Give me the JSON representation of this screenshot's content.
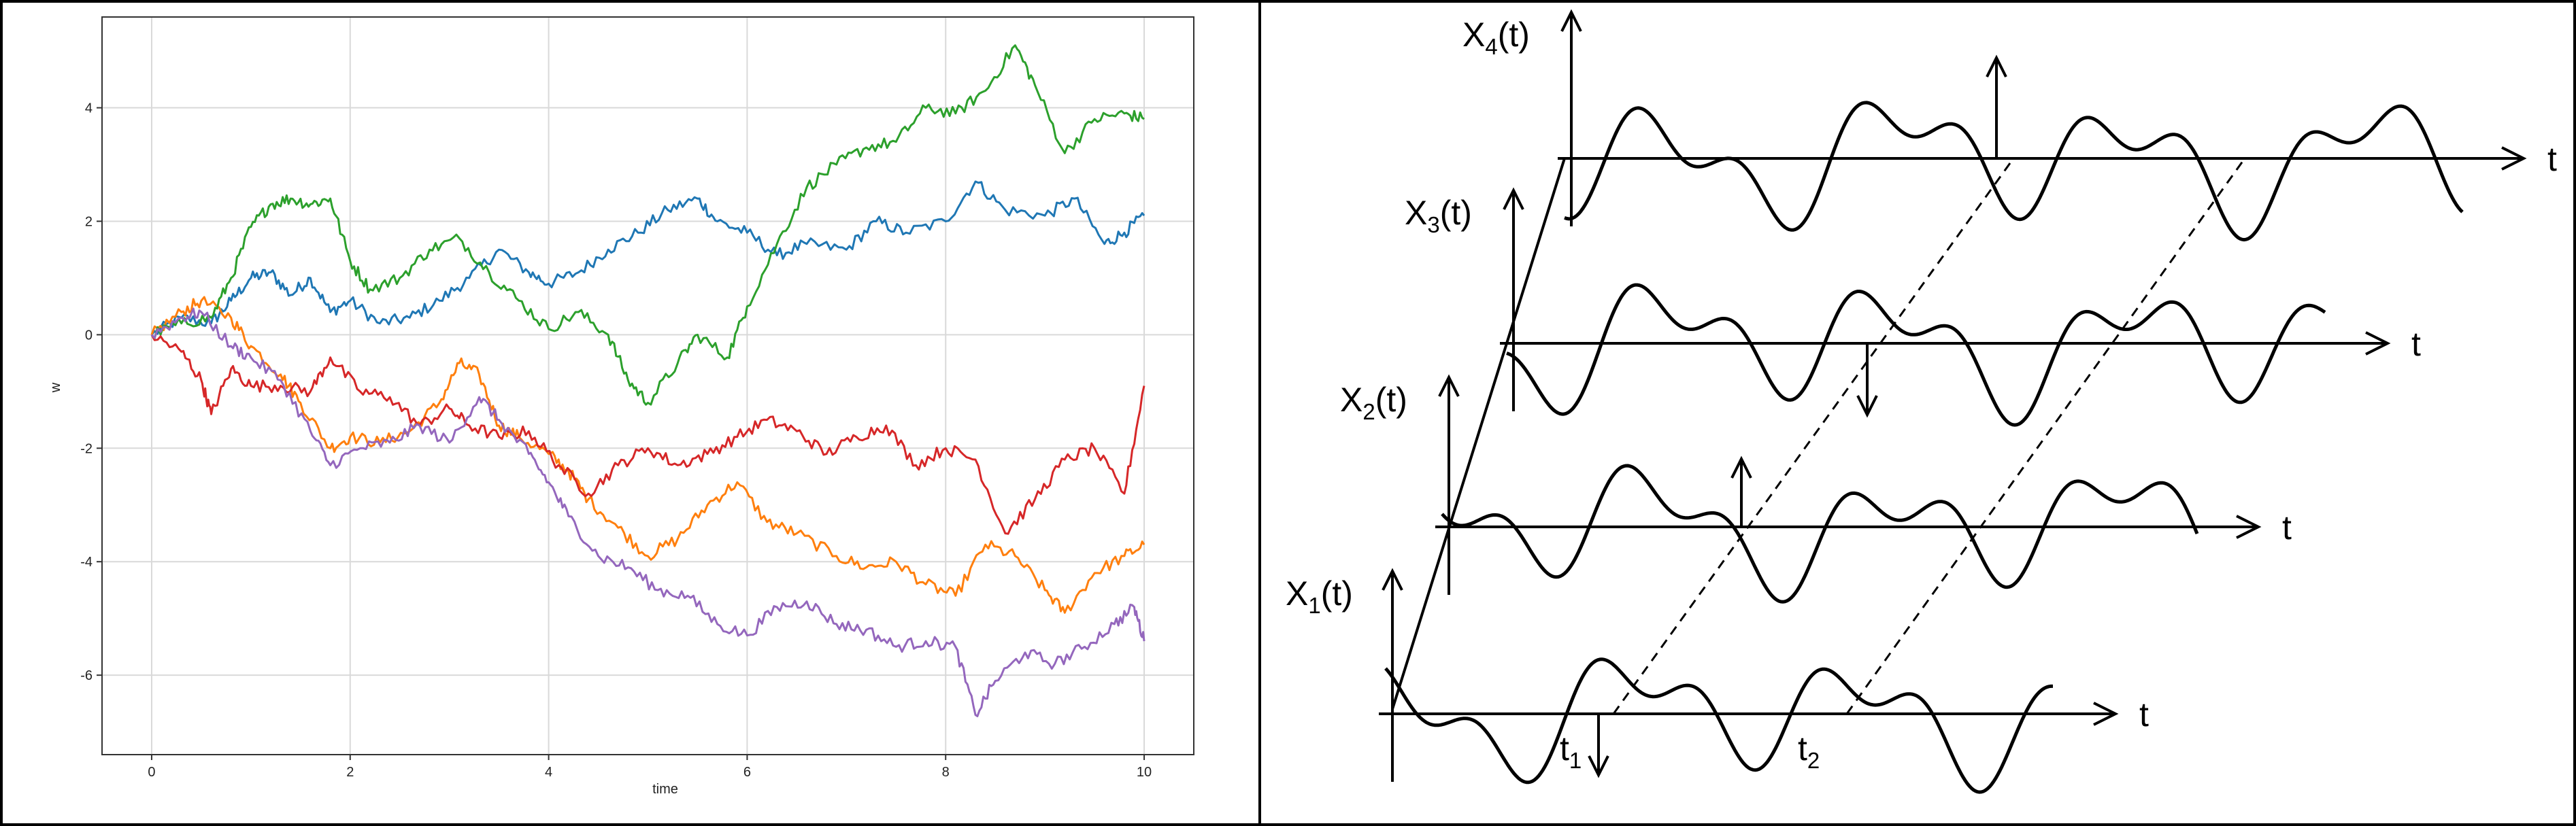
{
  "chart_data": {
    "type": "line",
    "xlabel": "time",
    "ylabel": "w",
    "xlim": [
      -0.5,
      10.5
    ],
    "ylim": [
      -7.4,
      5.6
    ],
    "xticks": [
      "0",
      "2",
      "4",
      "6",
      "8",
      "10"
    ],
    "yticks": [
      "-6",
      "-4",
      "-2",
      "0",
      "2",
      "4"
    ],
    "grid": true,
    "series": [
      {
        "color": "#1f77b4",
        "points": [
          [
            0,
            0
          ],
          [
            0.3,
            0.3
          ],
          [
            0.6,
            0.2
          ],
          [
            0.8,
            0.6
          ],
          [
            1.0,
            1.0
          ],
          [
            1.2,
            1.1
          ],
          [
            1.4,
            0.7
          ],
          [
            1.6,
            1.0
          ],
          [
            1.8,
            0.4
          ],
          [
            2.0,
            0.6
          ],
          [
            2.3,
            0.2
          ],
          [
            2.6,
            0.3
          ],
          [
            2.9,
            0.6
          ],
          [
            3.2,
            1.0
          ],
          [
            3.5,
            1.5
          ],
          [
            3.8,
            1.1
          ],
          [
            4.0,
            0.9
          ],
          [
            4.3,
            1.1
          ],
          [
            4.6,
            1.5
          ],
          [
            4.9,
            1.8
          ],
          [
            5.2,
            2.2
          ],
          [
            5.5,
            2.4
          ],
          [
            5.7,
            2.0
          ],
          [
            6.0,
            1.8
          ],
          [
            6.3,
            1.4
          ],
          [
            6.6,
            1.6
          ],
          [
            7.0,
            1.5
          ],
          [
            7.3,
            2.0
          ],
          [
            7.6,
            1.8
          ],
          [
            8.0,
            2.0
          ],
          [
            8.3,
            2.7
          ],
          [
            8.6,
            2.2
          ],
          [
            9.0,
            2.1
          ],
          [
            9.3,
            2.4
          ],
          [
            9.6,
            1.6
          ],
          [
            9.8,
            1.8
          ],
          [
            10.0,
            2.1
          ]
        ]
      },
      {
        "color": "#ff7f0e",
        "points": [
          [
            0,
            0
          ],
          [
            0.3,
            0.4
          ],
          [
            0.5,
            0.6
          ],
          [
            0.8,
            0.3
          ],
          [
            1.0,
            -0.2
          ],
          [
            1.3,
            -0.7
          ],
          [
            1.5,
            -1.2
          ],
          [
            1.8,
            -2.0
          ],
          [
            2.0,
            -1.8
          ],
          [
            2.3,
            -1.9
          ],
          [
            2.6,
            -1.7
          ],
          [
            2.9,
            -1.2
          ],
          [
            3.1,
            -0.5
          ],
          [
            3.3,
            -0.7
          ],
          [
            3.5,
            -1.6
          ],
          [
            3.7,
            -1.8
          ],
          [
            4.0,
            -2.1
          ],
          [
            4.2,
            -2.4
          ],
          [
            4.4,
            -2.9
          ],
          [
            4.7,
            -3.4
          ],
          [
            5.0,
            -3.9
          ],
          [
            5.3,
            -3.6
          ],
          [
            5.6,
            -3.0
          ],
          [
            5.9,
            -2.6
          ],
          [
            6.2,
            -3.3
          ],
          [
            6.5,
            -3.5
          ],
          [
            6.9,
            -3.9
          ],
          [
            7.2,
            -4.1
          ],
          [
            7.5,
            -4.0
          ],
          [
            7.8,
            -4.4
          ],
          [
            8.1,
            -4.6
          ],
          [
            8.4,
            -3.7
          ],
          [
            8.7,
            -3.9
          ],
          [
            9.0,
            -4.5
          ],
          [
            9.2,
            -4.9
          ],
          [
            9.5,
            -4.2
          ],
          [
            9.8,
            -3.9
          ],
          [
            10.0,
            -3.7
          ]
        ]
      },
      {
        "color": "#2ca02c",
        "points": [
          [
            0,
            0
          ],
          [
            0.3,
            0.2
          ],
          [
            0.6,
            0.3
          ],
          [
            0.8,
            1.0
          ],
          [
            1.0,
            1.9
          ],
          [
            1.2,
            2.3
          ],
          [
            1.4,
            2.4
          ],
          [
            1.6,
            2.3
          ],
          [
            1.8,
            2.4
          ],
          [
            2.0,
            1.3
          ],
          [
            2.2,
            0.8
          ],
          [
            2.5,
            1.0
          ],
          [
            2.8,
            1.5
          ],
          [
            3.1,
            1.7
          ],
          [
            3.4,
            1.1
          ],
          [
            3.7,
            0.6
          ],
          [
            4.0,
            0.1
          ],
          [
            4.3,
            0.4
          ],
          [
            4.6,
            0.0
          ],
          [
            4.8,
            -0.8
          ],
          [
            5.0,
            -1.2
          ],
          [
            5.3,
            -0.5
          ],
          [
            5.5,
            0.0
          ],
          [
            5.8,
            -0.4
          ],
          [
            6.0,
            0.5
          ],
          [
            6.3,
            1.6
          ],
          [
            6.6,
            2.6
          ],
          [
            6.9,
            3.0
          ],
          [
            7.2,
            3.3
          ],
          [
            7.5,
            3.4
          ],
          [
            7.8,
            4.0
          ],
          [
            8.1,
            3.9
          ],
          [
            8.4,
            4.3
          ],
          [
            8.7,
            5.1
          ],
          [
            8.9,
            4.4
          ],
          [
            9.2,
            3.2
          ],
          [
            9.5,
            3.8
          ],
          [
            9.8,
            3.9
          ],
          [
            10.0,
            3.8
          ]
        ]
      },
      {
        "color": "#d62728",
        "points": [
          [
            0,
            0
          ],
          [
            0.3,
            -0.3
          ],
          [
            0.5,
            -0.8
          ],
          [
            0.6,
            -1.4
          ],
          [
            0.8,
            -0.6
          ],
          [
            1.0,
            -0.9
          ],
          [
            1.3,
            -0.9
          ],
          [
            1.6,
            -1.0
          ],
          [
            1.8,
            -0.4
          ],
          [
            2.1,
            -1.0
          ],
          [
            2.4,
            -1.1
          ],
          [
            2.7,
            -1.6
          ],
          [
            3.0,
            -1.3
          ],
          [
            3.2,
            -1.6
          ],
          [
            3.5,
            -1.8
          ],
          [
            3.8,
            -1.7
          ],
          [
            4.1,
            -2.3
          ],
          [
            4.4,
            -2.8
          ],
          [
            4.7,
            -2.3
          ],
          [
            5.0,
            -2.0
          ],
          [
            5.3,
            -2.3
          ],
          [
            5.6,
            -2.1
          ],
          [
            5.9,
            -1.8
          ],
          [
            6.2,
            -1.5
          ],
          [
            6.5,
            -1.7
          ],
          [
            6.8,
            -2.1
          ],
          [
            7.1,
            -1.8
          ],
          [
            7.4,
            -1.6
          ],
          [
            7.7,
            -2.3
          ],
          [
            8.0,
            -2.0
          ],
          [
            8.3,
            -2.2
          ],
          [
            8.6,
            -3.5
          ],
          [
            8.9,
            -2.9
          ],
          [
            9.2,
            -2.2
          ],
          [
            9.5,
            -2.0
          ],
          [
            9.8,
            -2.8
          ],
          [
            10.0,
            -0.9
          ]
        ]
      },
      {
        "color": "#9467bd",
        "points": [
          [
            0,
            0
          ],
          [
            0.3,
            0.3
          ],
          [
            0.5,
            0.4
          ],
          [
            0.8,
            -0.2
          ],
          [
            1.0,
            -0.4
          ],
          [
            1.3,
            -0.8
          ],
          [
            1.6,
            -1.7
          ],
          [
            1.8,
            -2.3
          ],
          [
            2.1,
            -2.0
          ],
          [
            2.4,
            -1.9
          ],
          [
            2.7,
            -1.6
          ],
          [
            3.0,
            -1.9
          ],
          [
            3.3,
            -1.1
          ],
          [
            3.5,
            -1.5
          ],
          [
            3.8,
            -2.1
          ],
          [
            4.0,
            -2.6
          ],
          [
            4.2,
            -3.2
          ],
          [
            4.5,
            -3.9
          ],
          [
            4.8,
            -4.1
          ],
          [
            5.1,
            -4.5
          ],
          [
            5.4,
            -4.6
          ],
          [
            5.7,
            -5.1
          ],
          [
            6.0,
            -5.3
          ],
          [
            6.3,
            -4.8
          ],
          [
            6.6,
            -4.7
          ],
          [
            6.9,
            -5.1
          ],
          [
            7.2,
            -5.2
          ],
          [
            7.5,
            -5.5
          ],
          [
            7.8,
            -5.4
          ],
          [
            8.1,
            -5.5
          ],
          [
            8.3,
            -6.7
          ],
          [
            8.5,
            -6.1
          ],
          [
            8.8,
            -5.6
          ],
          [
            9.1,
            -5.8
          ],
          [
            9.4,
            -5.5
          ],
          [
            9.7,
            -5.1
          ],
          [
            9.9,
            -4.8
          ],
          [
            10.0,
            -5.4
          ]
        ]
      }
    ]
  },
  "diagram": {
    "ensemble": [
      {
        "name": "X",
        "sub": "1",
        "suffix": "(t)",
        "axis_label": "t"
      },
      {
        "name": "X",
        "sub": "2",
        "suffix": "(t)",
        "axis_label": "t"
      },
      {
        "name": "X",
        "sub": "3",
        "suffix": "(t)",
        "axis_label": "t"
      },
      {
        "name": "X",
        "sub": "4",
        "suffix": "(t)",
        "axis_label": "t"
      }
    ],
    "time_marks": [
      {
        "name": "t",
        "sub": "1"
      },
      {
        "name": "t",
        "sub": "2"
      }
    ]
  }
}
